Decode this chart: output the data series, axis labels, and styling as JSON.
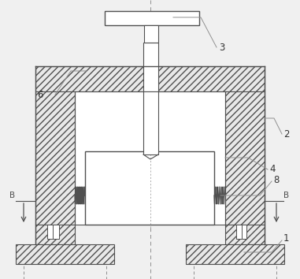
{
  "bg_color": "#f0f0f0",
  "line_color": "#909090",
  "dark_line": "#505050",
  "hatch_color": "#606060",
  "fig_width": 3.81,
  "fig_height": 3.54,
  "dpi": 100,
  "hatch_face": "#e8e8e8",
  "white": "#ffffff"
}
